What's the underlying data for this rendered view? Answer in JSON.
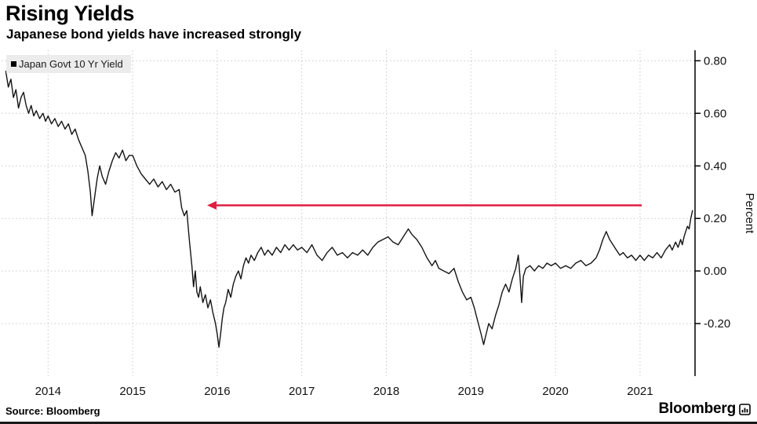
{
  "header": {
    "title": "Rising Yields",
    "subtitle": "Japanese bond yields have increased strongly"
  },
  "footer": {
    "source": "Source: Bloomberg",
    "brand": "Bloomberg"
  },
  "colors": {
    "line": "#141414",
    "arrow": "#df1e42",
    "grid": "#c9c9c9",
    "legend_bg": "#ececec"
  },
  "chart_data": {
    "type": "line",
    "title": "Rising Yields",
    "subtitle": "Japanese bond yields have increased strongly",
    "ylabel": "Percent",
    "xlabel": "",
    "legend_position": "top-left",
    "grid": "dotted",
    "xlim": [
      2013.45,
      2021.65
    ],
    "ylim": [
      -0.4,
      0.84
    ],
    "x_ticks": [
      2014,
      2015,
      2016,
      2017,
      2018,
      2019,
      2020,
      2021
    ],
    "y_ticks": [
      {
        "v": 0.8,
        "label": "0.80"
      },
      {
        "v": 0.6,
        "label": "0.60"
      },
      {
        "v": 0.4,
        "label": "0.40"
      },
      {
        "v": 0.2,
        "label": "0.20"
      },
      {
        "v": 0.0,
        "label": "0.00"
      },
      {
        "v": -0.2,
        "label": "-0.20"
      }
    ],
    "annotation_arrow": {
      "description": "horizontal red arrow pointing left",
      "y": 0.25,
      "x_from": 2021.02,
      "x_to": 2015.88,
      "direction": "left",
      "color": "#df1e42"
    },
    "series": [
      {
        "name": "Japan Govt 10 Yr Yield",
        "points": [
          [
            2013.5,
            0.76
          ],
          [
            2013.53,
            0.7
          ],
          [
            2013.56,
            0.73
          ],
          [
            2013.59,
            0.66
          ],
          [
            2013.62,
            0.69
          ],
          [
            2013.65,
            0.62
          ],
          [
            2013.68,
            0.66
          ],
          [
            2013.71,
            0.68
          ],
          [
            2013.74,
            0.63
          ],
          [
            2013.77,
            0.6
          ],
          [
            2013.8,
            0.63
          ],
          [
            2013.83,
            0.59
          ],
          [
            2013.86,
            0.61
          ],
          [
            2013.9,
            0.58
          ],
          [
            2013.94,
            0.6
          ],
          [
            2013.97,
            0.57
          ],
          [
            2014.0,
            0.59
          ],
          [
            2014.04,
            0.56
          ],
          [
            2014.08,
            0.58
          ],
          [
            2014.12,
            0.55
          ],
          [
            2014.16,
            0.57
          ],
          [
            2014.2,
            0.54
          ],
          [
            2014.24,
            0.56
          ],
          [
            2014.28,
            0.52
          ],
          [
            2014.32,
            0.54
          ],
          [
            2014.36,
            0.5
          ],
          [
            2014.4,
            0.47
          ],
          [
            2014.44,
            0.44
          ],
          [
            2014.47,
            0.38
          ],
          [
            2014.5,
            0.3
          ],
          [
            2014.52,
            0.21
          ],
          [
            2014.55,
            0.28
          ],
          [
            2014.58,
            0.35
          ],
          [
            2014.61,
            0.4
          ],
          [
            2014.64,
            0.36
          ],
          [
            2014.68,
            0.33
          ],
          [
            2014.72,
            0.38
          ],
          [
            2014.76,
            0.42
          ],
          [
            2014.8,
            0.45
          ],
          [
            2014.84,
            0.43
          ],
          [
            2014.88,
            0.46
          ],
          [
            2014.92,
            0.42
          ],
          [
            2014.96,
            0.44
          ],
          [
            2015.0,
            0.44
          ],
          [
            2015.05,
            0.4
          ],
          [
            2015.1,
            0.37
          ],
          [
            2015.15,
            0.35
          ],
          [
            2015.2,
            0.33
          ],
          [
            2015.25,
            0.35
          ],
          [
            2015.3,
            0.32
          ],
          [
            2015.35,
            0.34
          ],
          [
            2015.4,
            0.31
          ],
          [
            2015.45,
            0.33
          ],
          [
            2015.5,
            0.3
          ],
          [
            2015.55,
            0.31
          ],
          [
            2015.58,
            0.24
          ],
          [
            2015.61,
            0.21
          ],
          [
            2015.64,
            0.23
          ],
          [
            2015.67,
            0.12
          ],
          [
            2015.7,
            0.02
          ],
          [
            2015.72,
            -0.06
          ],
          [
            2015.74,
            0.0
          ],
          [
            2015.76,
            -0.08
          ],
          [
            2015.78,
            -0.1
          ],
          [
            2015.8,
            -0.06
          ],
          [
            2015.83,
            -0.12
          ],
          [
            2015.86,
            -0.09
          ],
          [
            2015.89,
            -0.14
          ],
          [
            2015.92,
            -0.11
          ],
          [
            2015.95,
            -0.16
          ],
          [
            2015.98,
            -0.2
          ],
          [
            2016.0,
            -0.24
          ],
          [
            2016.02,
            -0.29
          ],
          [
            2016.04,
            -0.24
          ],
          [
            2016.06,
            -0.18
          ],
          [
            2016.08,
            -0.14
          ],
          [
            2016.1,
            -0.12
          ],
          [
            2016.13,
            -0.07
          ],
          [
            2016.16,
            -0.1
          ],
          [
            2016.19,
            -0.05
          ],
          [
            2016.22,
            -0.02
          ],
          [
            2016.25,
            0.0
          ],
          [
            2016.28,
            -0.03
          ],
          [
            2016.31,
            0.02
          ],
          [
            2016.34,
            0.05
          ],
          [
            2016.37,
            0.03
          ],
          [
            2016.4,
            0.06
          ],
          [
            2016.44,
            0.04
          ],
          [
            2016.48,
            0.07
          ],
          [
            2016.52,
            0.09
          ],
          [
            2016.56,
            0.06
          ],
          [
            2016.6,
            0.08
          ],
          [
            2016.65,
            0.06
          ],
          [
            2016.7,
            0.09
          ],
          [
            2016.75,
            0.07
          ],
          [
            2016.8,
            0.1
          ],
          [
            2016.85,
            0.08
          ],
          [
            2016.9,
            0.1
          ],
          [
            2016.95,
            0.08
          ],
          [
            2017.0,
            0.09
          ],
          [
            2017.06,
            0.07
          ],
          [
            2017.12,
            0.1
          ],
          [
            2017.18,
            0.06
          ],
          [
            2017.24,
            0.04
          ],
          [
            2017.3,
            0.07
          ],
          [
            2017.36,
            0.09
          ],
          [
            2017.42,
            0.06
          ],
          [
            2017.48,
            0.07
          ],
          [
            2017.54,
            0.05
          ],
          [
            2017.6,
            0.07
          ],
          [
            2017.66,
            0.06
          ],
          [
            2017.72,
            0.08
          ],
          [
            2017.78,
            0.06
          ],
          [
            2017.84,
            0.09
          ],
          [
            2017.9,
            0.11
          ],
          [
            2017.96,
            0.12
          ],
          [
            2018.02,
            0.13
          ],
          [
            2018.08,
            0.11
          ],
          [
            2018.14,
            0.1
          ],
          [
            2018.2,
            0.13
          ],
          [
            2018.26,
            0.16
          ],
          [
            2018.3,
            0.14
          ],
          [
            2018.36,
            0.12
          ],
          [
            2018.42,
            0.09
          ],
          [
            2018.48,
            0.05
          ],
          [
            2018.54,
            0.02
          ],
          [
            2018.58,
            0.04
          ],
          [
            2018.62,
            0.01
          ],
          [
            2018.68,
            0.0
          ],
          [
            2018.74,
            -0.01
          ],
          [
            2018.8,
            0.01
          ],
          [
            2018.85,
            -0.04
          ],
          [
            2018.9,
            -0.08
          ],
          [
            2018.95,
            -0.11
          ],
          [
            2019.0,
            -0.1
          ],
          [
            2019.04,
            -0.14
          ],
          [
            2019.08,
            -0.19
          ],
          [
            2019.12,
            -0.24
          ],
          [
            2019.15,
            -0.28
          ],
          [
            2019.18,
            -0.24
          ],
          [
            2019.21,
            -0.2
          ],
          [
            2019.25,
            -0.22
          ],
          [
            2019.29,
            -0.17
          ],
          [
            2019.33,
            -0.13
          ],
          [
            2019.37,
            -0.08
          ],
          [
            2019.41,
            -0.05
          ],
          [
            2019.45,
            -0.08
          ],
          [
            2019.49,
            -0.03
          ],
          [
            2019.53,
            0.01
          ],
          [
            2019.56,
            0.06
          ],
          [
            2019.58,
            -0.02
          ],
          [
            2019.6,
            -0.12
          ],
          [
            2019.62,
            -0.02
          ],
          [
            2019.65,
            0.01
          ],
          [
            2019.7,
            0.02
          ],
          [
            2019.75,
            0.0
          ],
          [
            2019.8,
            0.02
          ],
          [
            2019.85,
            0.01
          ],
          [
            2019.9,
            0.03
          ],
          [
            2019.95,
            0.02
          ],
          [
            2020.0,
            0.03
          ],
          [
            2020.06,
            0.01
          ],
          [
            2020.12,
            0.02
          ],
          [
            2020.18,
            0.01
          ],
          [
            2020.24,
            0.03
          ],
          [
            2020.3,
            0.04
          ],
          [
            2020.36,
            0.02
          ],
          [
            2020.42,
            0.03
          ],
          [
            2020.48,
            0.05
          ],
          [
            2020.52,
            0.08
          ],
          [
            2020.56,
            0.12
          ],
          [
            2020.6,
            0.15
          ],
          [
            2020.64,
            0.12
          ],
          [
            2020.68,
            0.1
          ],
          [
            2020.72,
            0.08
          ],
          [
            2020.76,
            0.06
          ],
          [
            2020.8,
            0.07
          ],
          [
            2020.85,
            0.05
          ],
          [
            2020.9,
            0.06
          ],
          [
            2020.95,
            0.04
          ],
          [
            2021.0,
            0.06
          ],
          [
            2021.05,
            0.04
          ],
          [
            2021.1,
            0.06
          ],
          [
            2021.15,
            0.05
          ],
          [
            2021.2,
            0.07
          ],
          [
            2021.25,
            0.05
          ],
          [
            2021.3,
            0.08
          ],
          [
            2021.35,
            0.1
          ],
          [
            2021.38,
            0.08
          ],
          [
            2021.42,
            0.11
          ],
          [
            2021.45,
            0.09
          ],
          [
            2021.48,
            0.12
          ],
          [
            2021.5,
            0.1
          ],
          [
            2021.52,
            0.13
          ],
          [
            2021.54,
            0.15
          ],
          [
            2021.56,
            0.17
          ],
          [
            2021.58,
            0.16
          ],
          [
            2021.6,
            0.2
          ],
          [
            2021.62,
            0.23
          ]
        ]
      }
    ]
  }
}
